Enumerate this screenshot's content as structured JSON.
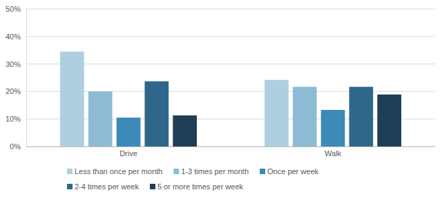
{
  "chart_data": {
    "type": "bar",
    "categories": [
      "Drive",
      "Walk"
    ],
    "series": [
      {
        "name": "Less than once per month",
        "color": "#aecfe0",
        "values": [
          34.5,
          24.2
        ]
      },
      {
        "name": "1-3 times per month",
        "color": "#8dbbd5",
        "values": [
          20.0,
          21.7
        ]
      },
      {
        "name": "Once per week",
        "color": "#3d89b8",
        "values": [
          10.5,
          13.3
        ]
      },
      {
        "name": "2-4 times per week",
        "color": "#2e6789",
        "values": [
          23.7,
          21.7
        ]
      },
      {
        "name": "5 or more times per week",
        "color": "#1f3e57",
        "values": [
          11.3,
          18.9
        ]
      }
    ],
    "ylim": [
      0,
      50
    ],
    "yticks": [
      {
        "value": 0,
        "label": "0%"
      },
      {
        "value": 10,
        "label": "10%"
      },
      {
        "value": 20,
        "label": "20%"
      },
      {
        "value": 30,
        "label": "30%"
      },
      {
        "value": 40,
        "label": "40%"
      },
      {
        "value": 50,
        "label": "50%"
      }
    ],
    "grid": true,
    "legend": "bottom"
  }
}
